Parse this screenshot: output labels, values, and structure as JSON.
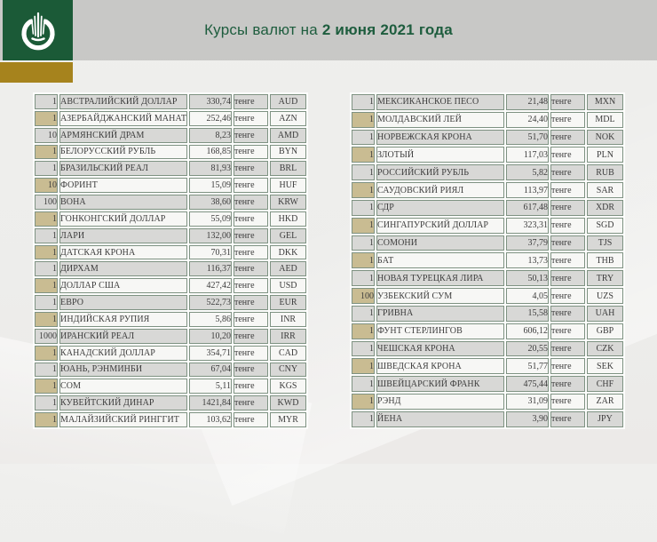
{
  "header": {
    "title_prefix": "Курсы валют на ",
    "title_date": "2 июня 2021 года"
  },
  "logo": {
    "emblem_icon": "national-bank-emblem",
    "green_color": "#1b5a37",
    "gold_color": "#a6831d"
  },
  "unit_label": "тенге",
  "colors": {
    "title_green": "#1e5d3e",
    "header_bar": "#c8c8c6",
    "row_dark": "#d8d8d6",
    "row_light": "#f7f7f5",
    "qty_tan": "#c9bc92",
    "cell_border": "#7e9282"
  },
  "tables": {
    "left": [
      {
        "qty": "1",
        "name": "АВСТРАЛИЙСКИЙ ДОЛЛАР",
        "rate": "330,74",
        "code": "AUD"
      },
      {
        "qty": "1",
        "name": "АЗЕРБАЙДЖАНСКИЙ МАНАТ",
        "rate": "252,46",
        "code": "AZN"
      },
      {
        "qty": "10",
        "name": "АРМЯНСКИЙ ДРАМ",
        "rate": "8,23",
        "code": "AMD"
      },
      {
        "qty": "1",
        "name": "БЕЛОРУССКИЙ РУБЛЬ",
        "rate": "168,85",
        "code": "BYN"
      },
      {
        "qty": "1",
        "name": "БРАЗИЛЬСКИЙ РЕАЛ",
        "rate": "81,93",
        "code": "BRL"
      },
      {
        "qty": "10",
        "name": "ФОРИНТ",
        "rate": "15,09",
        "code": "HUF"
      },
      {
        "qty": "100",
        "name": "ВОНА",
        "rate": "38,60",
        "code": "KRW"
      },
      {
        "qty": "1",
        "name": "ГОНКОНГСКИЙ ДОЛЛАР",
        "rate": "55,09",
        "code": "HKD"
      },
      {
        "qty": "1",
        "name": "ЛАРИ",
        "rate": "132,00",
        "code": "GEL"
      },
      {
        "qty": "1",
        "name": "ДАТСКАЯ КРОНА",
        "rate": "70,31",
        "code": "DKK"
      },
      {
        "qty": "1",
        "name": "ДИРХАМ",
        "rate": "116,37",
        "code": "AED"
      },
      {
        "qty": "1",
        "name": "ДОЛЛАР США",
        "rate": "427,42",
        "code": "USD"
      },
      {
        "qty": "1",
        "name": "ЕВРО",
        "rate": "522,73",
        "code": "EUR"
      },
      {
        "qty": "1",
        "name": "ИНДИЙСКАЯ РУПИЯ",
        "rate": "5,86",
        "code": "INR"
      },
      {
        "qty": "1000",
        "name": "ИРАНСКИЙ РЕАЛ",
        "rate": "10,20",
        "code": "IRR"
      },
      {
        "qty": "1",
        "name": "КАНАДСКИЙ ДОЛЛАР",
        "rate": "354,71",
        "code": "CAD"
      },
      {
        "qty": "1",
        "name": "ЮАНЬ, РЭНМИНБИ",
        "rate": "67,04",
        "code": "CNY"
      },
      {
        "qty": "1",
        "name": "СОМ",
        "rate": "5,11",
        "code": "KGS"
      },
      {
        "qty": "1",
        "name": "КУВЕЙТСКИЙ ДИНАР",
        "rate": "1421,84",
        "code": "KWD"
      },
      {
        "qty": "1",
        "name": "МАЛАЙЗИЙСКИЙ РИНГГИТ",
        "rate": "103,62",
        "code": "MYR"
      }
    ],
    "right": [
      {
        "qty": "1",
        "name": "МЕКСИКАНСКОЕ ПЕСО",
        "rate": "21,48",
        "code": "MXN"
      },
      {
        "qty": "1",
        "name": "МОЛДАВСКИЙ ЛЕЙ",
        "rate": "24,40",
        "code": "MDL"
      },
      {
        "qty": "1",
        "name": "НОРВЕЖСКАЯ КРОНА",
        "rate": "51,70",
        "code": "NOK"
      },
      {
        "qty": "1",
        "name": "ЗЛОТЫЙ",
        "rate": "117,03",
        "code": "PLN"
      },
      {
        "qty": "1",
        "name": "РОССИЙСКИЙ РУБЛЬ",
        "rate": "5,82",
        "code": "RUB"
      },
      {
        "qty": "1",
        "name": "САУДОВСКИЙ РИЯЛ",
        "rate": "113,97",
        "code": "SAR"
      },
      {
        "qty": "1",
        "name": "СДР",
        "rate": "617,48",
        "code": "XDR"
      },
      {
        "qty": "1",
        "name": "СИНГАПУРСКИЙ ДОЛЛАР",
        "rate": "323,31",
        "code": "SGD"
      },
      {
        "qty": "1",
        "name": "СОМОНИ",
        "rate": "37,79",
        "code": "TJS"
      },
      {
        "qty": "1",
        "name": "БАТ",
        "rate": "13,73",
        "code": "THB"
      },
      {
        "qty": "1",
        "name": "НОВАЯ ТУРЕЦКАЯ ЛИРА",
        "rate": "50,13",
        "code": "TRY"
      },
      {
        "qty": "100",
        "name": "УЗБЕКСКИЙ СУМ",
        "rate": "4,05",
        "code": "UZS"
      },
      {
        "qty": "1",
        "name": "ГРИВНА",
        "rate": "15,58",
        "code": "UAH"
      },
      {
        "qty": "1",
        "name": "ФУНТ СТЕРЛИНГОВ",
        "rate": "606,12",
        "code": "GBP"
      },
      {
        "qty": "1",
        "name": "ЧЕШСКАЯ КРОНА",
        "rate": "20,55",
        "code": "CZK"
      },
      {
        "qty": "1",
        "name": "ШВЕДСКАЯ КРОНА",
        "rate": "51,77",
        "code": "SEK"
      },
      {
        "qty": "1",
        "name": "ШВЕЙЦАРСКИЙ ФРАНК",
        "rate": "475,44",
        "code": "CHF"
      },
      {
        "qty": "1",
        "name": "РЭНД",
        "rate": "31,09",
        "code": "ZAR"
      },
      {
        "qty": "1",
        "name": "ЙЕНА",
        "rate": "3,90",
        "code": "JPY"
      }
    ]
  }
}
